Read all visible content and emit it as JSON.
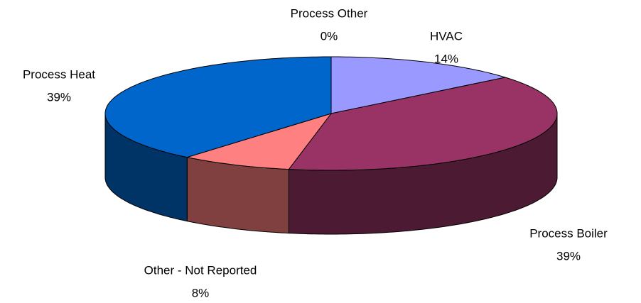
{
  "chart_data": {
    "type": "pie3d",
    "categories": [
      "HVAC",
      "Process Boiler",
      "Other - Not Reported",
      "Process Heat",
      "Process Other"
    ],
    "values": [
      14,
      39,
      8,
      39,
      0
    ],
    "value_labels": [
      "14%",
      "39%",
      "8%",
      "39%",
      "0%"
    ],
    "colors": [
      "#9999ff",
      "#993366",
      "#ff8080",
      "#0066cc",
      "#ffffcc"
    ]
  }
}
